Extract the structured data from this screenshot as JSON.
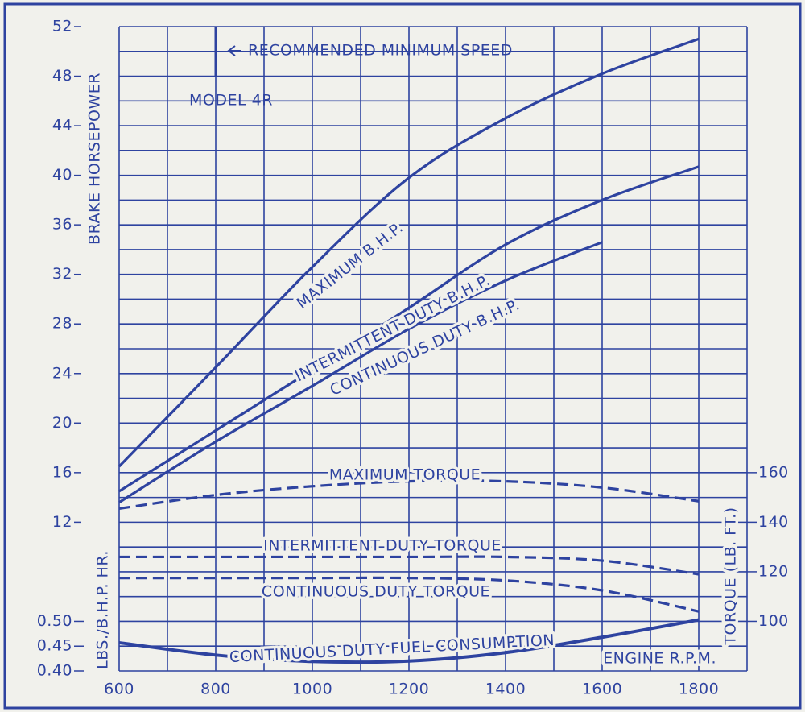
{
  "chart_data": {
    "type": "line",
    "title": "MODEL 4R",
    "x": [
      600,
      800,
      1000,
      1200,
      1400,
      1600,
      1800
    ],
    "xlim": [
      600,
      1900
    ],
    "xticks": [
      600,
      800,
      1000,
      1200,
      1400,
      1600,
      1800
    ],
    "xgrid": [
      600,
      700,
      800,
      900,
      1000,
      1100,
      1200,
      1300,
      1400,
      1500,
      1600,
      1700,
      1800,
      1900
    ],
    "xlabel": "ENGINE R.P.M.",
    "ylabel": "BRAKE HORSEPOWER",
    "ylim": [
      0,
      52
    ],
    "yticks": [
      12,
      16,
      20,
      24,
      28,
      32,
      36,
      40,
      44,
      48,
      52
    ],
    "ygrid": [
      0,
      2,
      4,
      6,
      8,
      10,
      12,
      14,
      16,
      18,
      20,
      22,
      24,
      26,
      28,
      30,
      32,
      34,
      36,
      38,
      40,
      42,
      44,
      46,
      48,
      50,
      52
    ],
    "y2label": "TORQUE (LB. FT.)",
    "y2lim": [
      100,
      160
    ],
    "y2ticks": [
      100,
      120,
      140,
      160
    ],
    "y3label": "LBS./B.H.P. HR.",
    "y3lim": [
      0.4,
      0.5
    ],
    "y3ticks": [
      {
        "value": 0.4,
        "label": "0.40"
      },
      0.45,
      {
        "value": 0.5,
        "label": "0.50"
      }
    ],
    "grid": true,
    "annotation": {
      "label": "RECOMMENDED MINIMUM SPEED",
      "x": 800
    },
    "series": [
      {
        "name": "MAXIMUM B.H.P.",
        "color": "#2e43a0",
        "style": "solid",
        "axis": "y",
        "values": [
          16.5,
          24.5,
          32.6,
          39.8,
          44.6,
          48.2,
          51.0
        ]
      },
      {
        "name": "INTERMITTENT DUTY B.H.P.",
        "color": "#2e43a0",
        "style": "solid",
        "axis": "y",
        "values": [
          14.5,
          19.4,
          24.3,
          29.3,
          34.4,
          38.0,
          40.7
        ]
      },
      {
        "name": "CONTINUOUS DUTY B.H.P.",
        "color": "#2e43a0",
        "style": "solid",
        "axis": "y",
        "values": [
          13.6,
          18.5,
          23.0,
          27.6,
          31.5,
          34.6,
          null
        ]
      },
      {
        "name": "MAXIMUM TORQUE",
        "color": "#2e43a0",
        "style": "dashed",
        "axis": "y2",
        "values": [
          145.5,
          151,
          154.5,
          156.5,
          156.5,
          154,
          148.5
        ]
      },
      {
        "name": "INTERMITTENT DUTY TORQUE",
        "color": "#2e43a0",
        "style": "dashed",
        "axis": "y2",
        "values": [
          126,
          126,
          126,
          126,
          126,
          124.5,
          119
        ]
      },
      {
        "name": "CONTINUOUS DUTY TORQUE",
        "color": "#2e43a0",
        "style": "dashed",
        "axis": "y2",
        "values": [
          117.5,
          117.5,
          117.5,
          117.5,
          116.5,
          112.5,
          104
        ]
      },
      {
        "name": "CONTINUOUS DUTY FUEL CONSUMPTION",
        "color": "#2e43a0",
        "style": "solid",
        "axis": "y3",
        "values": [
          0.457,
          0.432,
          0.419,
          0.42,
          0.437,
          0.468,
          0.503
        ]
      }
    ]
  }
}
